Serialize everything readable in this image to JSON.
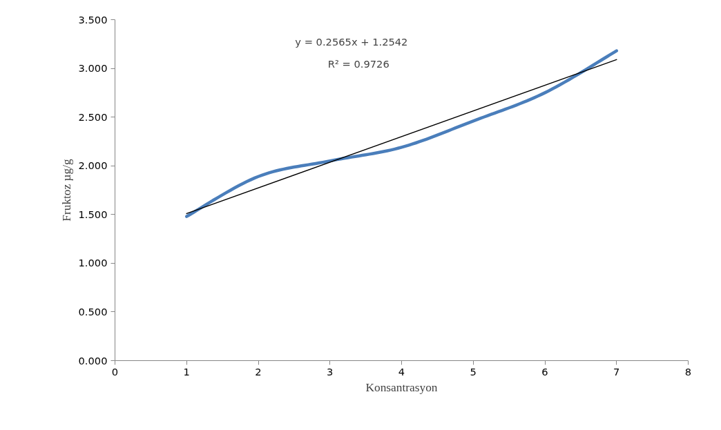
{
  "chart_data": {
    "type": "line",
    "xlabel": "Konsantrasyon",
    "ylabel": "Fruktoz µg/g",
    "x": [
      1,
      2,
      3,
      4,
      5,
      6,
      7
    ],
    "series": [
      {
        "color": "#4a7ebb",
        "values": [
          1.48,
          1.89,
          2.05,
          2.19,
          2.46,
          2.75,
          3.18
        ]
      },
      {
        "type": "line",
        "color": "#000000",
        "x": [
          1,
          7
        ],
        "values": [
          1.51,
          3.09
        ]
      }
    ],
    "xlim": [
      0,
      8
    ],
    "xticks": [
      0,
      1,
      2,
      3,
      4,
      5,
      6,
      7,
      8
    ],
    "ylim": [
      0,
      3.5
    ],
    "yticks": [
      {
        "value": 0,
        "label": "0.000"
      },
      {
        "value": 0.5,
        "label": "0.500"
      },
      {
        "value": 1,
        "label": "1.000"
      },
      {
        "value": 1.5,
        "label": "1.500"
      },
      {
        "value": 2,
        "label": "2.000"
      },
      {
        "value": 2.5,
        "label": "2.500"
      },
      {
        "value": 3,
        "label": "3.000"
      },
      {
        "value": 3.5,
        "label": "3.500"
      }
    ],
    "annotations": [
      "y = 0.2565x + 1.2542",
      "R² = 0.9726"
    ],
    "grid": false,
    "marker": "none",
    "line_style": "solid"
  }
}
